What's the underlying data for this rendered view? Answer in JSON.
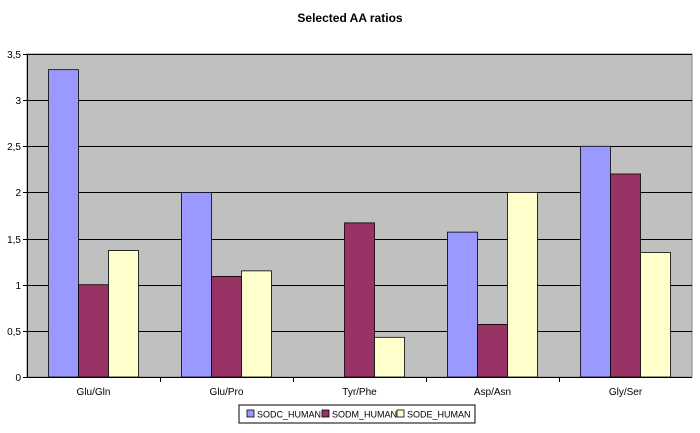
{
  "chart_data": {
    "type": "bar",
    "title": "Selected AA ratios",
    "xlabel": "",
    "ylabel": "",
    "categories": [
      "Glu/Gln",
      "Glu/Pro",
      "Tyr/Phe",
      "Asp/Asn",
      "Gly/Ser"
    ],
    "series": [
      {
        "name": "SODC_HUMAN",
        "color": "#9999ff",
        "values": [
          3.33,
          2.0,
          0.0,
          1.57,
          2.5
        ]
      },
      {
        "name": "SODM_HUMAN",
        "color": "#993366",
        "values": [
          1.0,
          1.09,
          1.67,
          0.57,
          2.2
        ]
      },
      {
        "name": "SODE_HUMAN",
        "color": "#ffffcc",
        "values": [
          1.37,
          1.15,
          0.43,
          2.0,
          1.35
        ]
      }
    ],
    "ylim": [
      0,
      3.5
    ],
    "yticks": [
      "0",
      "0,5",
      "1",
      "1,5",
      "2",
      "2,5",
      "3",
      "3,5"
    ],
    "grid": true,
    "plot_background": "#c0c0c0",
    "legend_position": "bottom"
  }
}
